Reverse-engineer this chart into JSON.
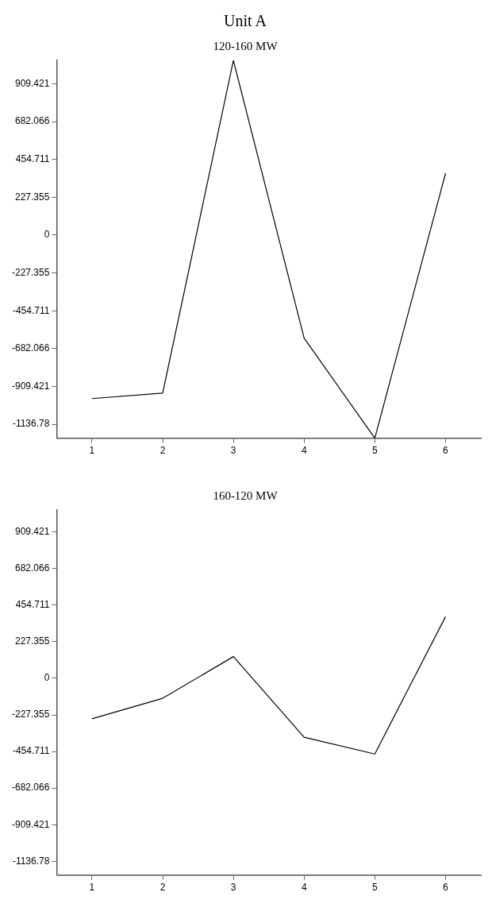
{
  "chart_data": [
    {
      "type": "line",
      "title": "Unit A",
      "subtitle": "120-160 MW",
      "x": [
        1,
        2,
        3,
        4,
        5,
        6
      ],
      "series": [
        {
          "color": "#000000",
          "values": [
            -982,
            -949,
            1050,
            -619,
            -1220,
            371
          ]
        }
      ],
      "xlim": [
        0.5,
        6.5
      ],
      "xticks": [
        1,
        2,
        3,
        4,
        5,
        6
      ],
      "ylim": [
        -1220,
        1050
      ],
      "yticks": [
        -1136.78,
        -909.421,
        -682.066,
        -454.711,
        -227.355,
        0,
        227.355,
        454.711,
        682.066,
        909.421
      ],
      "grid": false,
      "legend": false,
      "marker": "none",
      "line_style": "solid"
    },
    {
      "type": "line",
      "title": "160-120 MW",
      "x": [
        1,
        2,
        3,
        4,
        5,
        6
      ],
      "series": [
        {
          "color": "#000000",
          "values": [
            -251,
            -124,
            135,
            -366,
            -470,
            383
          ]
        }
      ],
      "xlim": [
        0.5,
        6.5
      ],
      "xticks": [
        1,
        2,
        3,
        4,
        5,
        6
      ],
      "ylim": [
        -1222,
        1046
      ],
      "yticks": [
        -1136.78,
        -909.421,
        -682.066,
        -454.711,
        -227.355,
        0,
        227.355,
        454.711,
        682.066,
        909.421
      ],
      "grid": false,
      "legend": false,
      "marker": "none",
      "line_style": "solid"
    }
  ]
}
